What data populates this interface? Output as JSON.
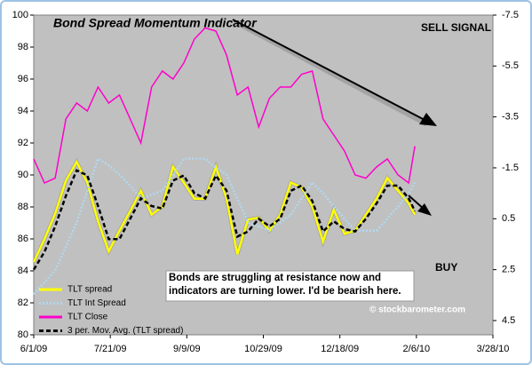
{
  "chart_data": {
    "type": "line",
    "title": "Bond Spread Momentum Indicator",
    "annotations": {
      "sell": "SELL SIGNAL",
      "buy": "BUY",
      "note": "Bonds are struggling at resistance now and indicators are turning lower.  I'd be bearish here.",
      "credit": "© stockbarometer.com"
    },
    "x": [
      "6/1/09",
      "6/8/09",
      "6/15/09",
      "6/22/09",
      "6/29/09",
      "7/6/09",
      "7/13/09",
      "7/20/09",
      "7/27/09",
      "8/3/09",
      "8/10/09",
      "8/17/09",
      "8/24/09",
      "8/31/09",
      "9/7/09",
      "9/14/09",
      "9/21/09",
      "9/28/09",
      "10/5/09",
      "10/12/09",
      "10/19/09",
      "10/26/09",
      "11/2/09",
      "11/9/09",
      "11/16/09",
      "11/23/09",
      "11/30/09",
      "12/7/09",
      "12/14/09",
      "12/21/09",
      "12/28/09",
      "1/4/10",
      "1/11/10",
      "1/18/10",
      "1/25/10",
      "2/1/10",
      "2/5/10"
    ],
    "xlim": [
      "6/1/09",
      "3/28/10"
    ],
    "xticks": [
      "6/1/09",
      "7/21/09",
      "9/9/09",
      "10/29/09",
      "12/18/09",
      "2/6/10",
      "3/28/10"
    ],
    "ylim": [
      80,
      100
    ],
    "yticks": [
      80,
      82,
      84,
      86,
      88,
      90,
      92,
      94,
      96,
      98,
      100
    ],
    "y2lim": [
      -7.5,
      5.06
    ],
    "y2_inverted": true,
    "y2ticks": [
      -7.5,
      -5.5,
      -3.5,
      -1.5,
      0.5,
      2.5,
      4.5
    ],
    "grid": false,
    "legend": "lower left",
    "series": [
      {
        "name": "TLT spread",
        "color": "#ffff00",
        "style": "solid",
        "axis": "y2",
        "values": [
          2.2,
          1.3,
          0.3,
          -1.0,
          -1.73,
          -0.92,
          0.6,
          1.78,
          0.97,
          0.2,
          -0.6,
          0.34,
          0.02,
          -1.54,
          -0.92,
          -0.29,
          -0.29,
          -1.54,
          -0.29,
          1.9,
          0.53,
          0.46,
          0.97,
          0.34,
          -0.92,
          -0.73,
          0.02,
          1.4,
          0.15,
          1.09,
          0.97,
          0.34,
          -0.29,
          -1.1,
          -0.6,
          -0.1,
          0.34
        ]
      },
      {
        "name": "TLT Int Spread",
        "color": "#b0d8ee",
        "style": "dotted",
        "axis": "y2",
        "values": [
          3.47,
          3.0,
          2.53,
          1.6,
          0.65,
          -0.6,
          -1.86,
          -1.6,
          -1.23,
          -0.8,
          -0.29,
          -0.45,
          -0.6,
          -1.2,
          -1.86,
          -1.86,
          -1.86,
          -1.5,
          -1.23,
          -0.3,
          0.65,
          0.8,
          0.97,
          0.65,
          0.34,
          -0.3,
          -0.92,
          -0.5,
          0.02,
          0.5,
          0.97,
          0.97,
          0.97,
          0.5,
          0.02,
          -0.5,
          -0.92
        ]
      },
      {
        "name": "TLT Close",
        "color": "#ff00cc",
        "style": "solid",
        "axis": "y",
        "values": [
          91,
          89.5,
          89.8,
          93.5,
          94.5,
          94,
          95.5,
          94.5,
          95,
          93.5,
          92,
          95.5,
          96.5,
          96,
          97,
          98.5,
          99.2,
          99,
          97.5,
          95,
          95.5,
          93,
          94.8,
          95.5,
          95.5,
          96.3,
          96.5,
          93.5,
          92.5,
          91.5,
          90,
          89.8,
          90.5,
          91,
          90,
          89.5,
          91.8
        ]
      },
      {
        "name": "3 per. Mov. Avg. (TLT spread)",
        "color": "#000000",
        "style": "dashed",
        "axis": "y2",
        "values": [
          2.5,
          1.8,
          0.8,
          -0.4,
          -1.4,
          -1.2,
          0.0,
          1.3,
          1.3,
          0.5,
          -0.3,
          0.0,
          0.1,
          -1.0,
          -1.2,
          -0.5,
          -0.3,
          -1.2,
          -0.6,
          1.2,
          1.0,
          0.5,
          0.8,
          0.5,
          -0.6,
          -0.8,
          -0.2,
          1.0,
          0.6,
          0.9,
          1.0,
          0.5,
          -0.1,
          -0.8,
          -0.8,
          -0.3,
          0.2
        ]
      }
    ]
  }
}
